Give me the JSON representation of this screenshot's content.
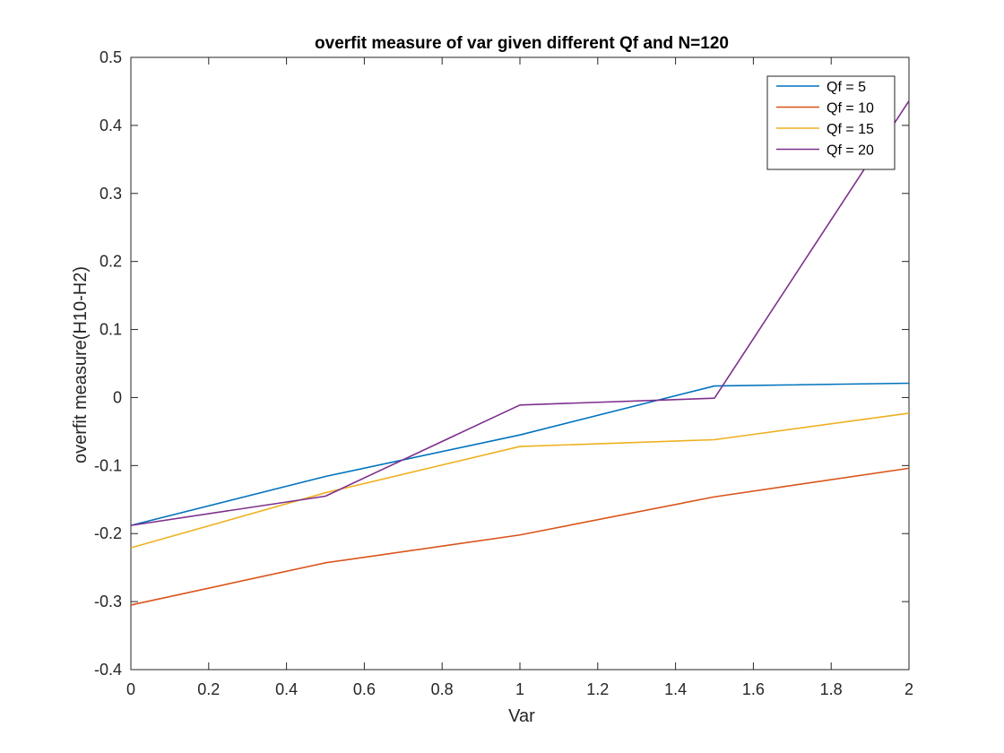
{
  "chart_data": {
    "type": "line",
    "title": "overfit measure of var given different Qf and N=120",
    "xlabel": "Var",
    "ylabel": "overfit measure(H10-H2)",
    "x": [
      0,
      0.5,
      1,
      1.5,
      2
    ],
    "xlim": [
      0,
      2
    ],
    "ylim": [
      -0.4,
      0.5
    ],
    "xticks": [
      "0",
      "0.2",
      "0.4",
      "0.6",
      "0.8",
      "1",
      "1.2",
      "1.4",
      "1.6",
      "1.8",
      "2"
    ],
    "yticks": [
      "-0.4",
      "-0.3",
      "-0.2",
      "-0.1",
      "0",
      "0.1",
      "0.2",
      "0.3",
      "0.4",
      "0.5"
    ],
    "grid": false,
    "legend_position": "top-right",
    "series": [
      {
        "name": "Qf = 5",
        "color": "#0072BD",
        "values": [
          -0.188,
          -0.116,
          -0.055,
          0.017,
          0.021
        ]
      },
      {
        "name": "Qf = 10",
        "color": "#D95319",
        "values": [
          -0.305,
          -0.243,
          -0.202,
          -0.146,
          -0.104
        ]
      },
      {
        "name": "Qf = 15",
        "color": "#EDB120",
        "values": [
          -0.221,
          -0.14,
          -0.072,
          -0.062,
          -0.023
        ]
      },
      {
        "name": "Qf = 20",
        "color": "#7E2F8E",
        "values": [
          -0.188,
          -0.145,
          -0.011,
          -0.001,
          0.436
        ]
      }
    ]
  }
}
